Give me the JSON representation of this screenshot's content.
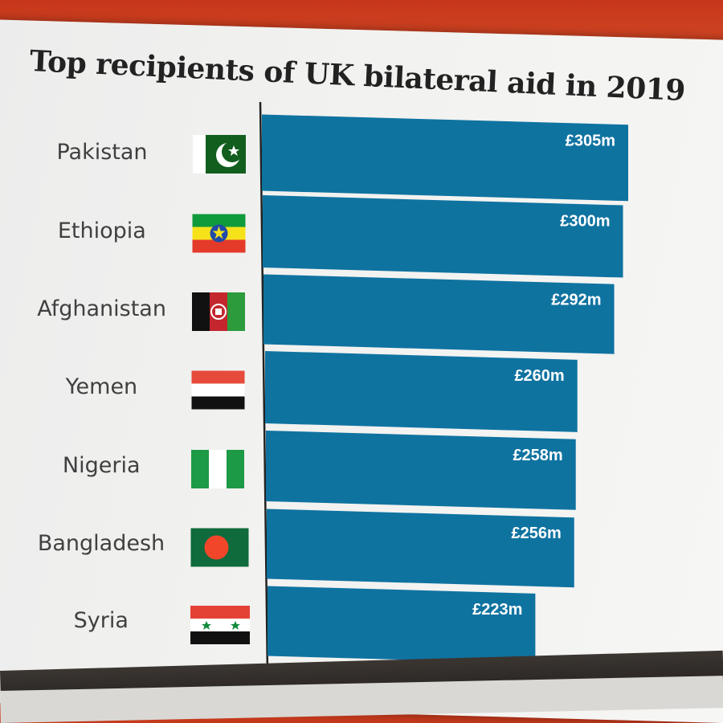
{
  "chart_data": {
    "type": "bar",
    "orientation": "horizontal",
    "title": "Top recipients of UK bilateral aid in 2019",
    "categories": [
      "Pakistan",
      "Ethiopia",
      "Afghanistan",
      "Yemen",
      "Nigeria",
      "Bangladesh",
      "Syria"
    ],
    "values": [
      305,
      300,
      292,
      260,
      258,
      256,
      223
    ],
    "value_labels": [
      "£305m",
      "£300m",
      "£292m",
      "£260m",
      "£258m",
      "£256m",
      "£223m"
    ],
    "flag_icons": [
      "pakistan-flag-icon",
      "ethiopia-flag-icon",
      "afghanistan-flag-icon",
      "yemen-flag-icon",
      "nigeria-flag-icon",
      "bangladesh-flag-icon",
      "syria-flag-icon"
    ],
    "bar_color": "#0f73a0",
    "xlabel": "",
    "ylabel": "",
    "xlim": [
      0,
      305
    ],
    "grid": false,
    "legend": "none"
  }
}
